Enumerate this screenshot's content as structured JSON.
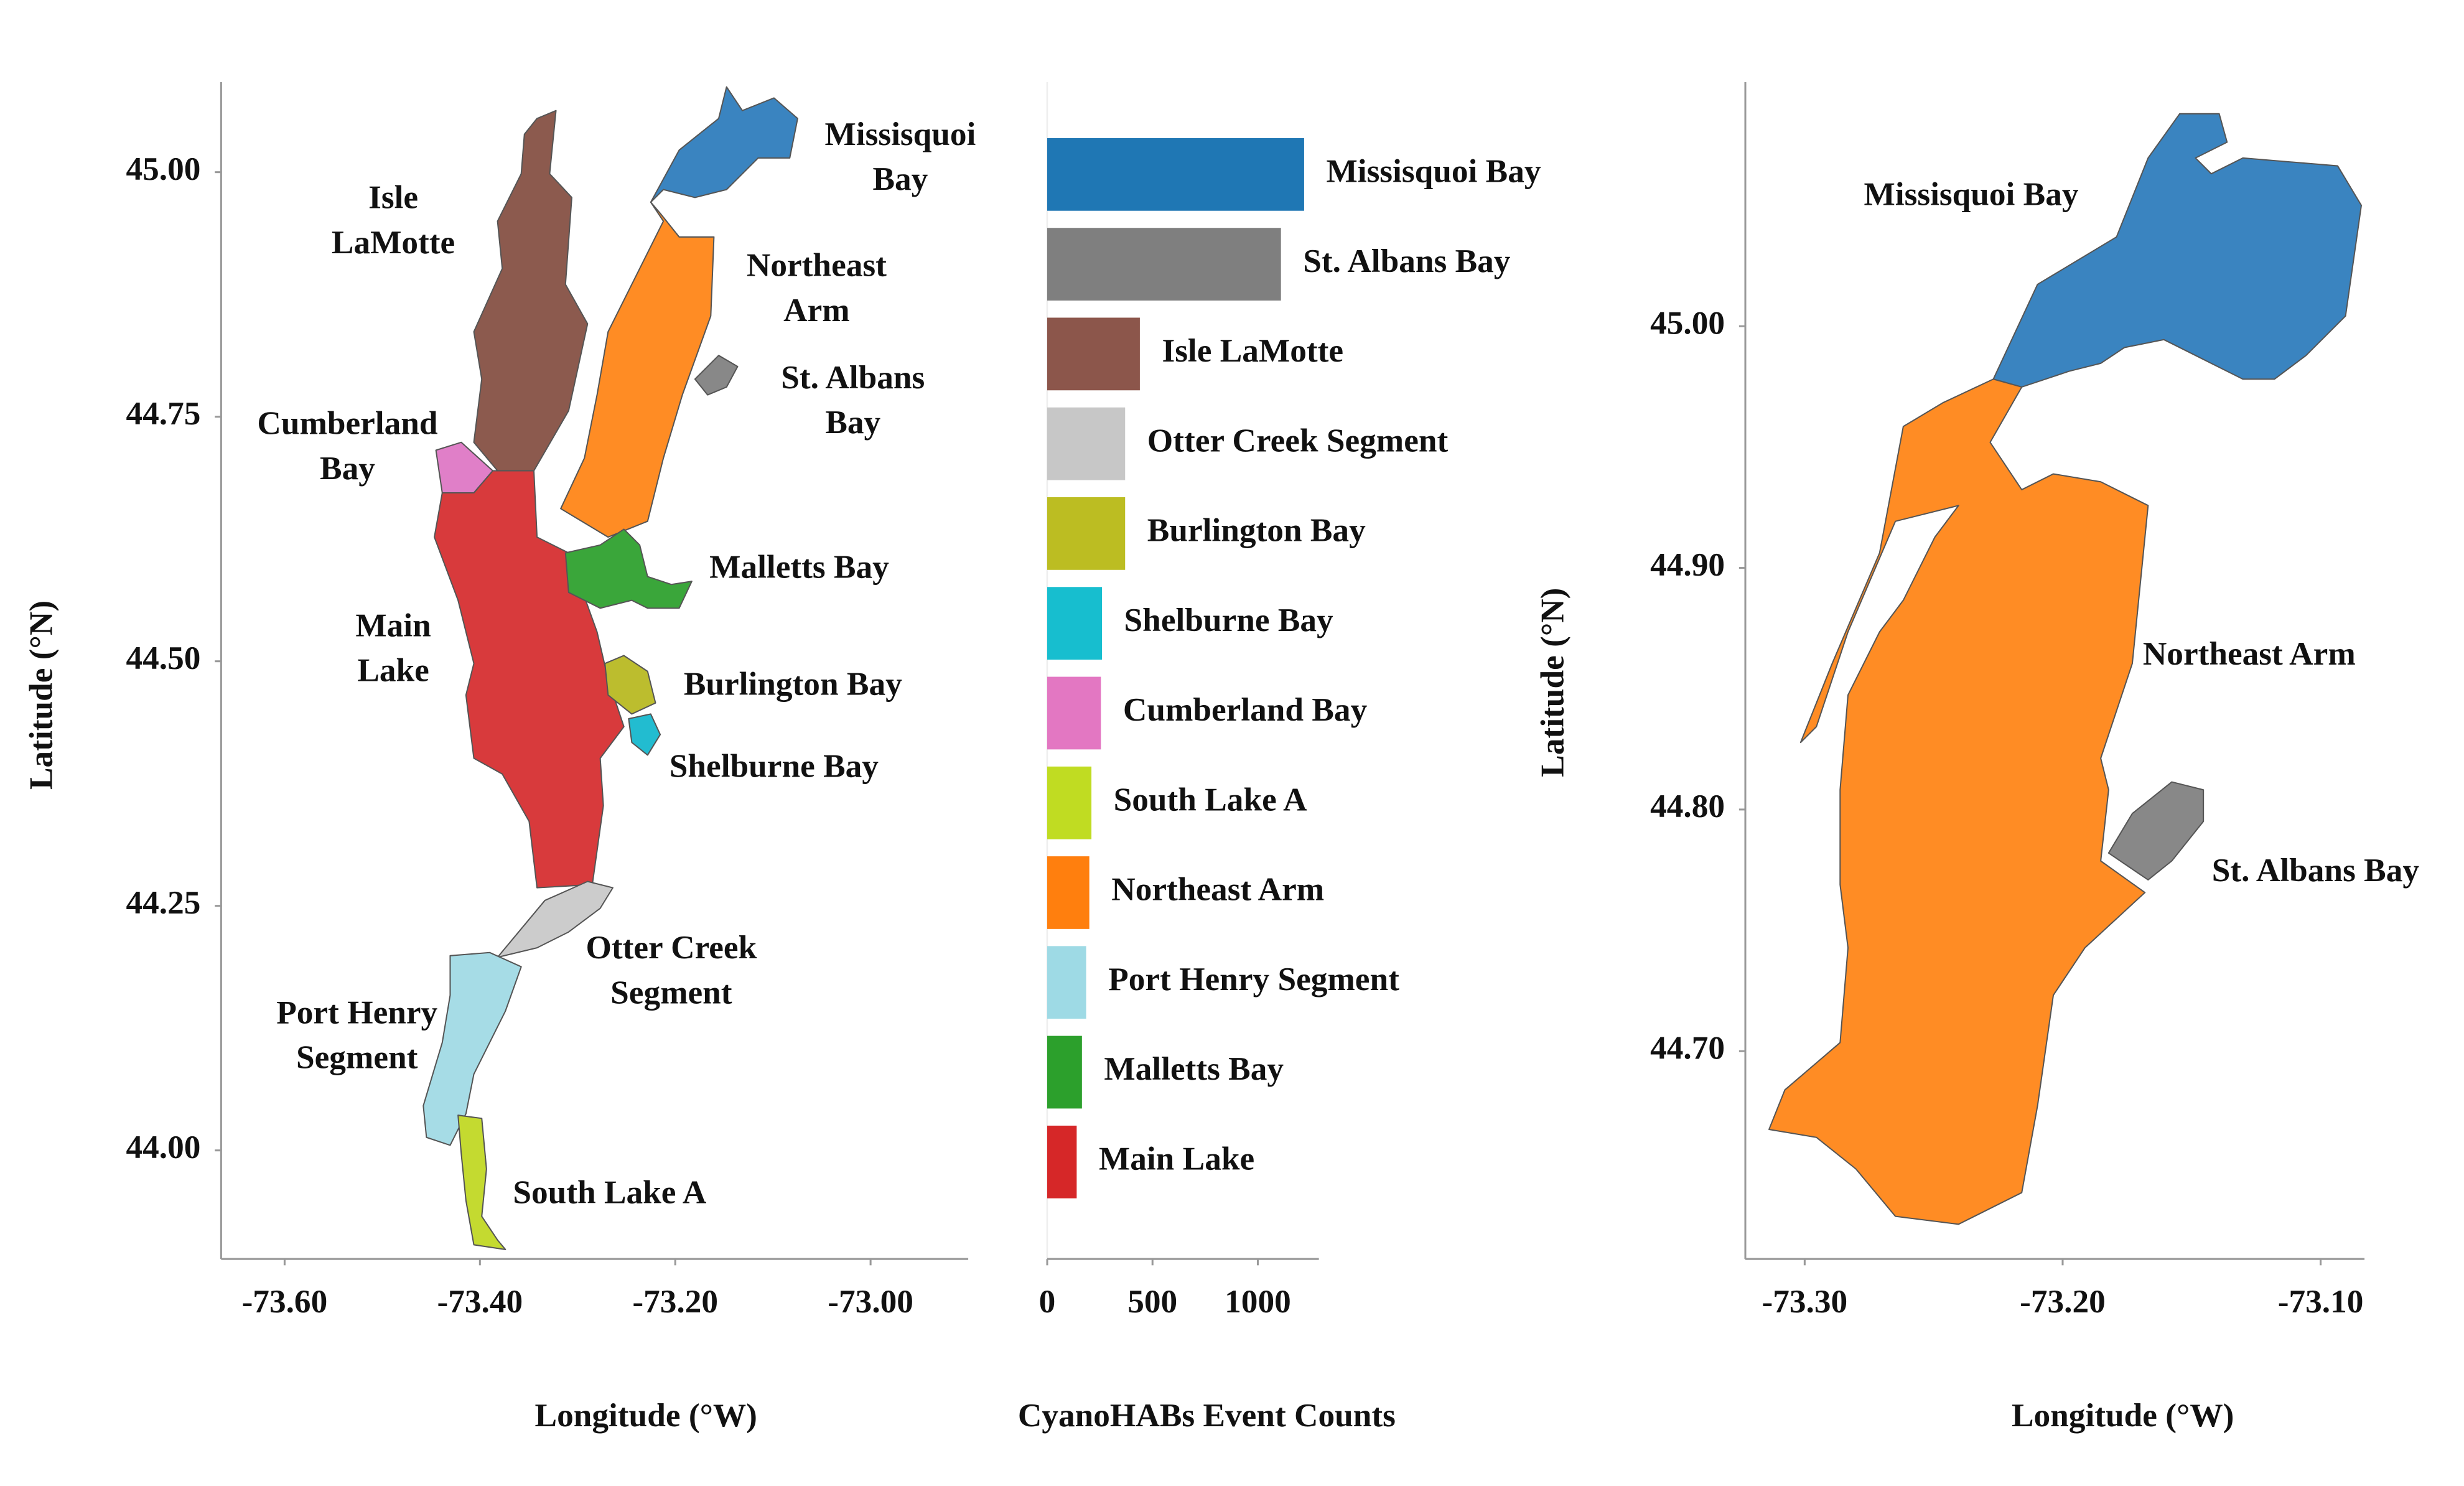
{
  "chart_data": [
    {
      "type": "map",
      "xlabel": "Longitude (°W)",
      "ylabel": "Latitude (°N)",
      "xlim": [
        -73.665,
        -72.9
      ],
      "ylim": [
        43.889,
        45.092
      ],
      "xticks": [
        {
          "value": -73.6,
          "label": "-73.60"
        },
        {
          "value": -73.4,
          "label": "-73.40"
        },
        {
          "value": -73.2,
          "label": "-73.20"
        },
        {
          "value": -73.0,
          "label": "-73.00"
        }
      ],
      "yticks": [
        {
          "value": 44.0,
          "label": "44.00"
        },
        {
          "value": 44.25,
          "label": "44.25"
        },
        {
          "value": 44.5,
          "label": "44.50"
        },
        {
          "value": 44.75,
          "label": "44.75"
        },
        {
          "value": 45.0,
          "label": "45.00"
        }
      ],
      "regions": [
        {
          "label": [
            "Isle",
            "LaMotte"
          ],
          "color": "#8c5a4e"
        },
        {
          "label": [
            "Missisquoi",
            "Bay"
          ],
          "color": "#3a84c0"
        },
        {
          "label": [
            "Northeast",
            "Arm"
          ],
          "color": "#ff8c24"
        },
        {
          "label": [
            "St. Albans",
            "Bay"
          ],
          "color": "#888888"
        },
        {
          "label": [
            "Cumberland",
            "Bay"
          ],
          "color": "#e07fc8"
        },
        {
          "label": [
            "Main",
            "Lake"
          ],
          "color": "#d83a3c"
        },
        {
          "label": [
            "Malletts Bay"
          ],
          "color": "#3aa63a"
        },
        {
          "label": [
            "Burlington Bay"
          ],
          "color": "#bcbd2e"
        },
        {
          "label": [
            "Shelburne Bay"
          ],
          "color": "#22bcd0"
        },
        {
          "label": [
            "Otter Creek",
            "Segment"
          ],
          "color": "#cccccc"
        },
        {
          "label": [
            "Port Henry",
            "Segment"
          ],
          "color": "#a6dce6"
        },
        {
          "label": [
            "South Lake A"
          ],
          "color": "#c4da30"
        }
      ]
    },
    {
      "type": "bar",
      "xlabel": "CyanoHABs Event Counts",
      "categories": [
        "Missisquoi Bay",
        "St. Albans Bay",
        "Isle LaMotte",
        "Otter Creek  Segment",
        "Burlington Bay",
        "Shelburne Bay",
        "Cumberland Bay",
        "South Lake A",
        "Northeast Arm",
        "Port Henry Segment",
        "Malletts Bay",
        "Main Lake"
      ],
      "values": [
        1220,
        1110,
        440,
        370,
        370,
        260,
        255,
        210,
        200,
        185,
        165,
        140
      ],
      "colors": [
        "#1f77b4",
        "#7f7f7f",
        "#8c564b",
        "#c7c7c7",
        "#bcbd22",
        "#17becf",
        "#e377c2",
        "#c0dc22",
        "#ff7f0e",
        "#9edae5",
        "#2ca02c",
        "#d62728"
      ],
      "xlim": [
        0,
        1290
      ],
      "xticks": [
        0,
        500,
        1000
      ]
    },
    {
      "type": "map",
      "xlabel": "Longitude (°W)",
      "ylabel": "Latitude (°N)",
      "xlim": [
        -73.323,
        -73.083
      ],
      "ylim": [
        44.614,
        45.101
      ],
      "xticks": [
        {
          "value": -73.3,
          "label": "-73.30"
        },
        {
          "value": -73.2,
          "label": "-73.20"
        },
        {
          "value": -73.1,
          "label": "-73.10"
        }
      ],
      "yticks": [
        {
          "value": 44.7,
          "label": "44.70"
        },
        {
          "value": 44.8,
          "label": "44.80"
        },
        {
          "value": 44.9,
          "label": "44.90"
        },
        {
          "value": 45.0,
          "label": "45.00"
        }
      ],
      "regions": [
        {
          "label": [
            "Missisquoi Bay"
          ],
          "color": "#3a84c0"
        },
        {
          "label": [
            "Northeast Arm"
          ],
          "color": "#ff8c24"
        },
        {
          "label": [
            "St. Albans Bay"
          ],
          "color": "#888888"
        }
      ]
    }
  ]
}
